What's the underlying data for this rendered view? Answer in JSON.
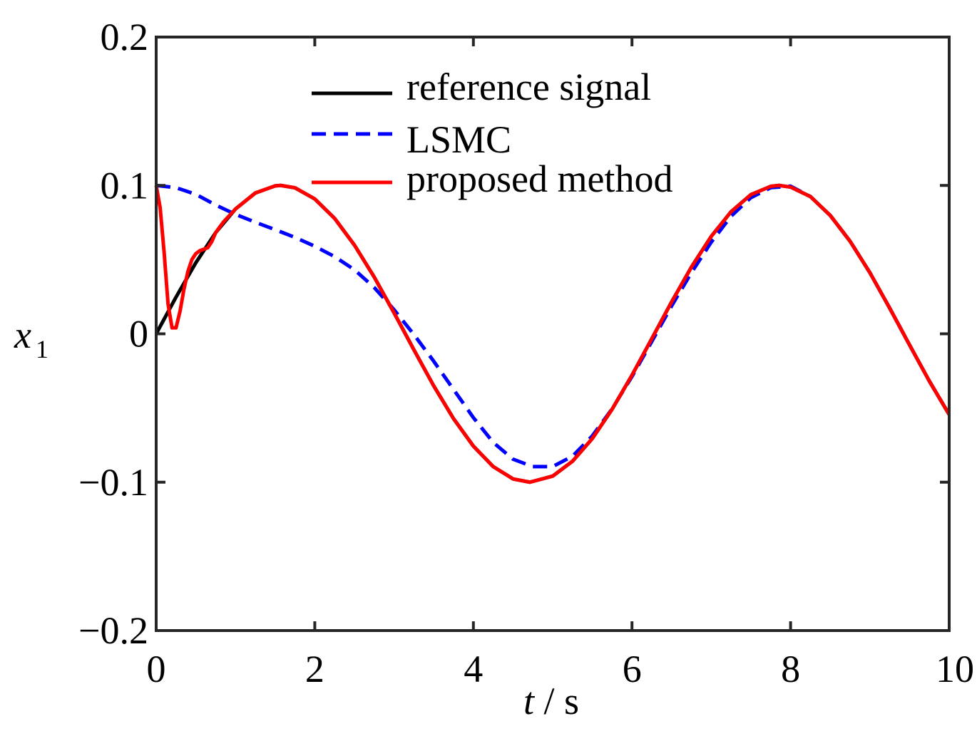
{
  "chart_data": {
    "type": "line",
    "title": "",
    "xlabel": {
      "var": "t",
      "sep": " / ",
      "unit": "s"
    },
    "ylabel": {
      "var": "x",
      "sub": "1"
    },
    "xlim": [
      0,
      10
    ],
    "ylim": [
      -0.2,
      0.2
    ],
    "xticks": [
      0,
      2,
      4,
      6,
      8,
      10
    ],
    "xtick_labels": [
      "0",
      "2",
      "4",
      "6",
      "8",
      "10"
    ],
    "yticks": [
      -0.2,
      -0.1,
      0,
      0.1,
      0.2
    ],
    "ytick_labels": [
      "−0.2",
      "−0.1",
      "0",
      "0.1",
      "0.2"
    ],
    "grid": false,
    "legend_position": "top-center",
    "series": [
      {
        "name": "reference signal",
        "color": "#000000",
        "style": "solid",
        "x": [
          0,
          0.25,
          0.5,
          0.75,
          1.0,
          1.25,
          1.5,
          1.571,
          1.75,
          2.0,
          2.25,
          2.5,
          2.75,
          3.0,
          3.25,
          3.5,
          3.75,
          4.0,
          4.25,
          4.5,
          4.712,
          5.0,
          5.25,
          5.5,
          5.75,
          6.0,
          6.25,
          6.5,
          6.75,
          7.0,
          7.25,
          7.5,
          7.75,
          7.854,
          8.0,
          8.25,
          8.5,
          8.75,
          9.0,
          9.25,
          9.5,
          9.75,
          10.0
        ],
        "y": [
          0,
          0.0247,
          0.0479,
          0.0682,
          0.0841,
          0.0949,
          0.0997,
          0.1,
          0.0984,
          0.0909,
          0.0778,
          0.0598,
          0.0382,
          0.0141,
          -0.0108,
          -0.0351,
          -0.0572,
          -0.0757,
          -0.0895,
          -0.0978,
          -0.1,
          -0.0959,
          -0.0859,
          -0.0706,
          -0.0508,
          -0.0279,
          -0.0033,
          0.0215,
          0.045,
          0.0657,
          0.0823,
          0.0938,
          0.0994,
          0.1,
          0.0989,
          0.0925,
          0.0798,
          0.0624,
          0.0412,
          0.0173,
          -0.0075,
          -0.0319,
          -0.0544
        ]
      },
      {
        "name": "LSMC",
        "color": "#0000ff",
        "style": "dashed",
        "x": [
          0,
          0.25,
          0.5,
          0.75,
          1.0,
          1.25,
          1.5,
          1.75,
          2.0,
          2.25,
          2.5,
          2.75,
          3.0,
          3.25,
          3.5,
          3.75,
          4.0,
          4.25,
          4.5,
          4.75,
          5.0,
          5.25,
          5.5,
          5.75,
          6.0,
          6.25,
          6.5,
          6.75,
          7.0,
          7.25,
          7.5,
          7.75,
          8.0,
          8.25,
          8.5,
          8.75,
          9.0,
          9.25,
          9.5,
          9.75,
          10.0
        ],
        "y": [
          0.1,
          0.0985,
          0.094,
          0.0868,
          0.0805,
          0.0752,
          0.0702,
          0.065,
          0.059,
          0.052,
          0.0432,
          0.0312,
          0.0162,
          -0.0005,
          -0.0185,
          -0.0375,
          -0.0565,
          -0.0732,
          -0.0845,
          -0.0895,
          -0.0895,
          -0.0825,
          -0.0688,
          -0.0505,
          -0.0288,
          -0.0052,
          0.0188,
          0.0413,
          0.0618,
          0.0793,
          0.0918,
          0.0985,
          0.0995,
          0.0925,
          0.0798,
          0.0624,
          0.0412,
          0.0173,
          -0.0075,
          -0.0319,
          -0.0544
        ]
      },
      {
        "name": "proposed method",
        "color": "#ff0000",
        "style": "solid",
        "x": [
          0,
          0.05,
          0.1,
          0.15,
          0.2,
          0.25,
          0.3,
          0.35,
          0.4,
          0.45,
          0.5,
          0.55,
          0.6,
          0.65,
          0.7,
          0.75,
          0.85,
          1.0,
          1.25,
          1.5,
          1.571,
          1.75,
          2.0,
          2.25,
          2.5,
          2.75,
          3.0,
          3.25,
          3.5,
          3.75,
          4.0,
          4.25,
          4.5,
          4.712,
          5.0,
          5.25,
          5.5,
          5.75,
          6.0,
          6.25,
          6.5,
          6.75,
          7.0,
          7.25,
          7.5,
          7.75,
          7.854,
          8.0,
          8.25,
          8.5,
          8.75,
          9.0,
          9.25,
          9.5,
          9.75,
          10.0
        ],
        "y": [
          0.1,
          0.085,
          0.055,
          0.02,
          0.004,
          0.004,
          0.015,
          0.03,
          0.042,
          0.05,
          0.054,
          0.056,
          0.057,
          0.058,
          0.062,
          0.0682,
          0.0755,
          0.0841,
          0.0949,
          0.0997,
          0.1,
          0.0984,
          0.0909,
          0.0778,
          0.0598,
          0.0382,
          0.0141,
          -0.0108,
          -0.0351,
          -0.0572,
          -0.0757,
          -0.0895,
          -0.0978,
          -0.1,
          -0.0959,
          -0.0859,
          -0.0706,
          -0.0508,
          -0.0279,
          -0.0033,
          0.0215,
          0.045,
          0.0657,
          0.0823,
          0.0938,
          0.0994,
          0.1,
          0.0989,
          0.0925,
          0.0798,
          0.0624,
          0.0412,
          0.0173,
          -0.0075,
          -0.0319,
          -0.0544
        ]
      }
    ]
  }
}
